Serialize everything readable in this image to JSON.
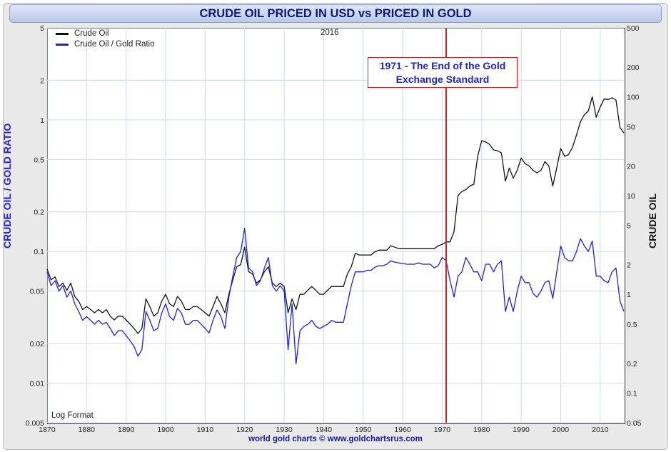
{
  "chart_data": {
    "type": "line",
    "title": "CRUDE OIL PRICED IN USD vs PRICED IN GOLD",
    "ylabel_left": "CRUDE OIL / GOLD RATIO",
    "ylabel_right": "CRUDE OIL",
    "scale_note": "Log Format",
    "year_note": "2016",
    "legend_placement": "top-left",
    "xlim": [
      1870,
      2016
    ],
    "x_ticks": [
      "1870",
      "1880",
      "1890",
      "1900",
      "1910",
      "1920",
      "1930",
      "1940",
      "1950",
      "1960",
      "1970",
      "1980",
      "1990",
      "2000",
      "2010"
    ],
    "ylim_left": [
      0.005,
      5
    ],
    "yticks_left": [
      "5",
      "2",
      "1",
      "0.5",
      "0.2",
      "0.1",
      "0.05",
      "0.02",
      "0.01",
      "0.005"
    ],
    "ylim_right": [
      0.05,
      500
    ],
    "yticks_right": [
      "500",
      "200",
      "100",
      "50",
      "20",
      "10",
      "5",
      "2",
      "1",
      "0.5",
      "0.2",
      "0.1",
      "0.05"
    ],
    "annotation": {
      "x": 1971,
      "text_line1": "1971 - The End of the Gold",
      "text_line2": "Exchange Standard",
      "color": "#e01b1b"
    },
    "series": [
      {
        "name": "Crude Oil",
        "color": "#111111",
        "axis": "right",
        "points": [
          [
            1870,
            1.8
          ],
          [
            1871,
            1.4
          ],
          [
            1872,
            1.5
          ],
          [
            1873,
            1.2
          ],
          [
            1874,
            1.3
          ],
          [
            1875,
            1.1
          ],
          [
            1876,
            1.3
          ],
          [
            1877,
            0.95
          ],
          [
            1878,
            0.85
          ],
          [
            1879,
            0.7
          ],
          [
            1880,
            0.75
          ],
          [
            1881,
            0.7
          ],
          [
            1882,
            0.65
          ],
          [
            1883,
            0.7
          ],
          [
            1884,
            0.65
          ],
          [
            1885,
            0.7
          ],
          [
            1886,
            0.6
          ],
          [
            1887,
            0.55
          ],
          [
            1888,
            0.6
          ],
          [
            1889,
            0.6
          ],
          [
            1890,
            0.55
          ],
          [
            1891,
            0.5
          ],
          [
            1892,
            0.45
          ],
          [
            1893,
            0.4
          ],
          [
            1894,
            0.45
          ],
          [
            1895,
            0.9
          ],
          [
            1896,
            0.75
          ],
          [
            1897,
            0.6
          ],
          [
            1898,
            0.65
          ],
          [
            1899,
            0.85
          ],
          [
            1900,
            1.0
          ],
          [
            1901,
            0.8
          ],
          [
            1902,
            0.75
          ],
          [
            1903,
            0.95
          ],
          [
            1904,
            0.85
          ],
          [
            1905,
            0.7
          ],
          [
            1906,
            0.7
          ],
          [
            1907,
            0.75
          ],
          [
            1908,
            0.75
          ],
          [
            1909,
            0.7
          ],
          [
            1910,
            0.65
          ],
          [
            1911,
            0.6
          ],
          [
            1912,
            0.75
          ],
          [
            1913,
            0.95
          ],
          [
            1914,
            0.8
          ],
          [
            1915,
            0.65
          ],
          [
            1916,
            1.0
          ],
          [
            1917,
            1.4
          ],
          [
            1918,
            1.9
          ],
          [
            1919,
            2.0
          ],
          [
            1920,
            3.0
          ],
          [
            1921,
            1.7
          ],
          [
            1922,
            1.6
          ],
          [
            1923,
            1.3
          ],
          [
            1924,
            1.4
          ],
          [
            1925,
            1.7
          ],
          [
            1926,
            1.9
          ],
          [
            1927,
            1.3
          ],
          [
            1928,
            1.2
          ],
          [
            1929,
            1.3
          ],
          [
            1930,
            1.2
          ],
          [
            1931,
            0.65
          ],
          [
            1932,
            0.9
          ],
          [
            1933,
            0.7
          ],
          [
            1934,
            1.0
          ],
          [
            1935,
            1.0
          ],
          [
            1936,
            1.1
          ],
          [
            1937,
            1.2
          ],
          [
            1938,
            1.1
          ],
          [
            1939,
            1.0
          ],
          [
            1940,
            1.0
          ],
          [
            1941,
            1.1
          ],
          [
            1942,
            1.2
          ],
          [
            1943,
            1.2
          ],
          [
            1944,
            1.2
          ],
          [
            1945,
            1.2
          ],
          [
            1946,
            1.6
          ],
          [
            1947,
            1.9
          ],
          [
            1948,
            2.6
          ],
          [
            1949,
            2.5
          ],
          [
            1950,
            2.5
          ],
          [
            1951,
            2.5
          ],
          [
            1952,
            2.5
          ],
          [
            1953,
            2.7
          ],
          [
            1954,
            2.8
          ],
          [
            1955,
            2.8
          ],
          [
            1956,
            2.8
          ],
          [
            1957,
            3.1
          ],
          [
            1958,
            3.0
          ],
          [
            1959,
            2.9
          ],
          [
            1960,
            2.9
          ],
          [
            1961,
            2.9
          ],
          [
            1962,
            2.9
          ],
          [
            1963,
            2.9
          ],
          [
            1964,
            2.9
          ],
          [
            1965,
            2.9
          ],
          [
            1966,
            2.9
          ],
          [
            1967,
            2.9
          ],
          [
            1968,
            2.9
          ],
          [
            1969,
            3.1
          ],
          [
            1970,
            3.2
          ],
          [
            1971,
            3.4
          ],
          [
            1972,
            3.4
          ],
          [
            1973,
            4.3
          ],
          [
            1974,
            10.0
          ],
          [
            1975,
            11.0
          ],
          [
            1976,
            11.5
          ],
          [
            1977,
            12.5
          ],
          [
            1978,
            13.0
          ],
          [
            1979,
            25.0
          ],
          [
            1980,
            36.0
          ],
          [
            1981,
            35.0
          ],
          [
            1982,
            33.0
          ],
          [
            1983,
            29.0
          ],
          [
            1984,
            28.5
          ],
          [
            1985,
            27.0
          ],
          [
            1986,
            14.0
          ],
          [
            1987,
            19.0
          ],
          [
            1988,
            15.0
          ],
          [
            1989,
            18.0
          ],
          [
            1990,
            24.0
          ],
          [
            1991,
            21.0
          ],
          [
            1992,
            20.0
          ],
          [
            1993,
            18.0
          ],
          [
            1994,
            17.0
          ],
          [
            1995,
            18.0
          ],
          [
            1996,
            22.0
          ],
          [
            1997,
            20.0
          ],
          [
            1998,
            12.5
          ],
          [
            1999,
            19.0
          ],
          [
            2000,
            30.0
          ],
          [
            2001,
            25.0
          ],
          [
            2002,
            26.0
          ],
          [
            2003,
            31.0
          ],
          [
            2004,
            41.0
          ],
          [
            2005,
            56.0
          ],
          [
            2006,
            66.0
          ],
          [
            2007,
            72.0
          ],
          [
            2008,
            100.0
          ],
          [
            2009,
            62.0
          ],
          [
            2010,
            79.0
          ],
          [
            2011,
            95.0
          ],
          [
            2012,
            94.0
          ],
          [
            2013,
            98.0
          ],
          [
            2014,
            93.0
          ],
          [
            2015,
            49.0
          ],
          [
            2016,
            43.0
          ]
        ]
      },
      {
        "name": "Crude Oil / Gold Ratio",
        "color": "#1f1fe6",
        "axis": "left",
        "points": [
          [
            1870,
            0.07
          ],
          [
            1871,
            0.055
          ],
          [
            1872,
            0.06
          ],
          [
            1873,
            0.05
          ],
          [
            1874,
            0.055
          ],
          [
            1875,
            0.045
          ],
          [
            1876,
            0.05
          ],
          [
            1877,
            0.04
          ],
          [
            1878,
            0.035
          ],
          [
            1879,
            0.03
          ],
          [
            1880,
            0.032
          ],
          [
            1881,
            0.03
          ],
          [
            1882,
            0.028
          ],
          [
            1883,
            0.03
          ],
          [
            1884,
            0.028
          ],
          [
            1885,
            0.029
          ],
          [
            1886,
            0.026
          ],
          [
            1887,
            0.023
          ],
          [
            1888,
            0.025
          ],
          [
            1889,
            0.025
          ],
          [
            1890,
            0.023
          ],
          [
            1891,
            0.021
          ],
          [
            1892,
            0.019
          ],
          [
            1893,
            0.016
          ],
          [
            1894,
            0.018
          ],
          [
            1895,
            0.035
          ],
          [
            1896,
            0.03
          ],
          [
            1897,
            0.025
          ],
          [
            1898,
            0.026
          ],
          [
            1899,
            0.034
          ],
          [
            1900,
            0.04
          ],
          [
            1901,
            0.032
          ],
          [
            1902,
            0.03
          ],
          [
            1903,
            0.037
          ],
          [
            1904,
            0.034
          ],
          [
            1905,
            0.028
          ],
          [
            1906,
            0.028
          ],
          [
            1907,
            0.03
          ],
          [
            1908,
            0.03
          ],
          [
            1909,
            0.028
          ],
          [
            1910,
            0.026
          ],
          [
            1911,
            0.024
          ],
          [
            1912,
            0.03
          ],
          [
            1913,
            0.036
          ],
          [
            1914,
            0.032
          ],
          [
            1915,
            0.026
          ],
          [
            1916,
            0.045
          ],
          [
            1917,
            0.065
          ],
          [
            1918,
            0.09
          ],
          [
            1919,
            0.1
          ],
          [
            1920,
            0.15
          ],
          [
            1921,
            0.075
          ],
          [
            1922,
            0.07
          ],
          [
            1923,
            0.055
          ],
          [
            1924,
            0.06
          ],
          [
            1925,
            0.075
          ],
          [
            1926,
            0.09
          ],
          [
            1927,
            0.055
          ],
          [
            1928,
            0.05
          ],
          [
            1929,
            0.055
          ],
          [
            1930,
            0.05
          ],
          [
            1931,
            0.018
          ],
          [
            1932,
            0.04
          ],
          [
            1933,
            0.014
          ],
          [
            1934,
            0.025
          ],
          [
            1935,
            0.027
          ],
          [
            1936,
            0.028
          ],
          [
            1937,
            0.03
          ],
          [
            1938,
            0.027
          ],
          [
            1939,
            0.026
          ],
          [
            1940,
            0.027
          ],
          [
            1941,
            0.028
          ],
          [
            1942,
            0.03
          ],
          [
            1943,
            0.029
          ],
          [
            1944,
            0.029
          ],
          [
            1945,
            0.029
          ],
          [
            1946,
            0.04
          ],
          [
            1947,
            0.055
          ],
          [
            1948,
            0.07
          ],
          [
            1949,
            0.07
          ],
          [
            1950,
            0.07
          ],
          [
            1951,
            0.072
          ],
          [
            1952,
            0.072
          ],
          [
            1953,
            0.076
          ],
          [
            1954,
            0.078
          ],
          [
            1955,
            0.078
          ],
          [
            1956,
            0.08
          ],
          [
            1957,
            0.085
          ],
          [
            1958,
            0.083
          ],
          [
            1959,
            0.082
          ],
          [
            1960,
            0.081
          ],
          [
            1961,
            0.08
          ],
          [
            1962,
            0.08
          ],
          [
            1963,
            0.08
          ],
          [
            1964,
            0.082
          ],
          [
            1965,
            0.08
          ],
          [
            1966,
            0.08
          ],
          [
            1967,
            0.08
          ],
          [
            1968,
            0.075
          ],
          [
            1969,
            0.078
          ],
          [
            1970,
            0.09
          ],
          [
            1971,
            0.085
          ],
          [
            1972,
            0.06
          ],
          [
            1973,
            0.045
          ],
          [
            1974,
            0.065
          ],
          [
            1975,
            0.07
          ],
          [
            1976,
            0.09
          ],
          [
            1977,
            0.08
          ],
          [
            1978,
            0.07
          ],
          [
            1979,
            0.07
          ],
          [
            1980,
            0.06
          ],
          [
            1981,
            0.08
          ],
          [
            1982,
            0.08
          ],
          [
            1983,
            0.07
          ],
          [
            1984,
            0.08
          ],
          [
            1985,
            0.085
          ],
          [
            1986,
            0.035
          ],
          [
            1987,
            0.045
          ],
          [
            1988,
            0.035
          ],
          [
            1989,
            0.05
          ],
          [
            1990,
            0.065
          ],
          [
            1991,
            0.058
          ],
          [
            1992,
            0.058
          ],
          [
            1993,
            0.048
          ],
          [
            1994,
            0.045
          ],
          [
            1995,
            0.05
          ],
          [
            1996,
            0.058
          ],
          [
            1997,
            0.06
          ],
          [
            1998,
            0.044
          ],
          [
            1999,
            0.07
          ],
          [
            2000,
            0.11
          ],
          [
            2001,
            0.09
          ],
          [
            2002,
            0.085
          ],
          [
            2003,
            0.085
          ],
          [
            2004,
            0.1
          ],
          [
            2005,
            0.125
          ],
          [
            2006,
            0.11
          ],
          [
            2007,
            0.1
          ],
          [
            2008,
            0.12
          ],
          [
            2009,
            0.065
          ],
          [
            2010,
            0.065
          ],
          [
            2011,
            0.06
          ],
          [
            2012,
            0.058
          ],
          [
            2013,
            0.07
          ],
          [
            2014,
            0.075
          ],
          [
            2015,
            0.042
          ],
          [
            2016,
            0.035
          ]
        ]
      }
    ]
  },
  "footer": "world gold charts © www.goldchartsrus.com"
}
